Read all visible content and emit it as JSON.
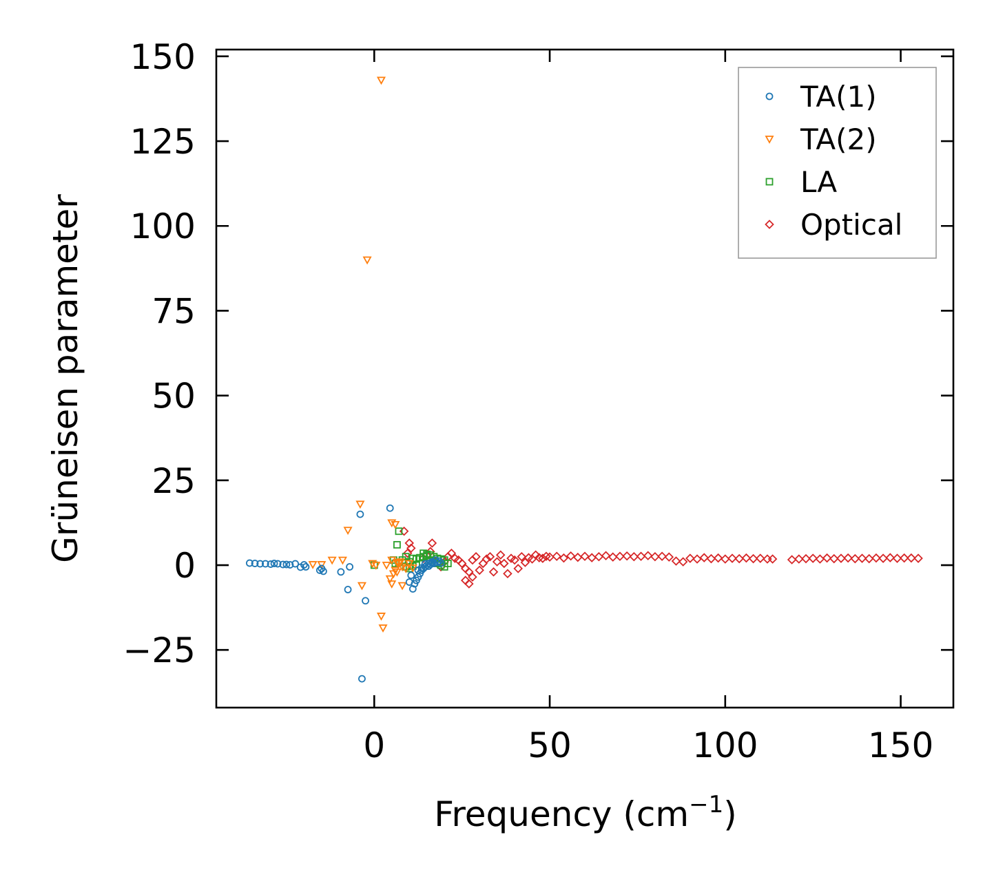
{
  "chart_data": {
    "type": "scatter",
    "xlabel": "Frequency (cm",
    "xlabel_sup": "−1",
    "xlabel_close": ")",
    "ylabel": "Grüneisen parameter",
    "xlim": [
      -45,
      165
    ],
    "ylim": [
      -42,
      152
    ],
    "xticks": [
      0,
      50,
      100,
      150
    ],
    "xtick_labels": [
      "0",
      "50",
      "100",
      "150"
    ],
    "yticks": [
      -25,
      0,
      25,
      50,
      75,
      100,
      125,
      150
    ],
    "ytick_labels": [
      "−25",
      "0",
      "25",
      "50",
      "75",
      "100",
      "125",
      "150"
    ],
    "legend_position": "top-right",
    "series": [
      {
        "name": "TA(1)",
        "marker": "circle",
        "color": "#1f77b4",
        "points": [
          [
            -35.5,
            0.6
          ],
          [
            -34,
            0.5
          ],
          [
            -32.5,
            0.4
          ],
          [
            -31,
            0.4
          ],
          [
            -29.5,
            0.3
          ],
          [
            -28.5,
            0.5
          ],
          [
            -27.5,
            0.4
          ],
          [
            -26,
            0.2
          ],
          [
            -25,
            0.2
          ],
          [
            -24,
            0.1
          ],
          [
            -22.5,
            0.4
          ],
          [
            -21,
            -0.6
          ],
          [
            -20,
            0.1
          ],
          [
            -19.5,
            -0.5
          ],
          [
            -15.5,
            -1.5
          ],
          [
            -15,
            -1.0
          ],
          [
            -14.5,
            -1.8
          ],
          [
            -9.5,
            -2.0
          ],
          [
            -7,
            -0.5
          ],
          [
            -7.5,
            -7.2
          ],
          [
            -4,
            15.0
          ],
          [
            -3.5,
            -33.5
          ],
          [
            -2.5,
            -10.5
          ],
          [
            4.5,
            16.8
          ],
          [
            10,
            -5.0
          ],
          [
            11,
            -7.0
          ],
          [
            11.5,
            -5.5
          ],
          [
            12,
            -4.5
          ],
          [
            10.5,
            -3.0
          ],
          [
            12.5,
            -3.5
          ],
          [
            13,
            -2.5
          ],
          [
            13.5,
            -1.5
          ],
          [
            14,
            -1.0
          ],
          [
            14.5,
            -0.5
          ],
          [
            15,
            0.0
          ],
          [
            15.5,
            0.5
          ],
          [
            16,
            0.2
          ],
          [
            16.5,
            1.0
          ],
          [
            17,
            0.5
          ],
          [
            17.5,
            1.5
          ],
          [
            18,
            0.8
          ],
          [
            18.5,
            1.2
          ],
          [
            19,
            0.6
          ],
          [
            12.5,
            -1.5
          ],
          [
            13.5,
            -0.8
          ],
          [
            14.5,
            0.4
          ],
          [
            15.5,
            -0.3
          ],
          [
            16.5,
            0.6
          ]
        ]
      },
      {
        "name": "TA(2)",
        "marker": "triangle-down",
        "color": "#ff7f0e",
        "points": [
          [
            2,
            143
          ],
          [
            -2,
            90
          ],
          [
            -4,
            18
          ],
          [
            -7.5,
            10.3
          ],
          [
            -9,
            1.5
          ],
          [
            -12,
            1.5
          ],
          [
            -15,
            0.2
          ],
          [
            -17.5,
            0.2
          ],
          [
            -3.5,
            -6.0
          ],
          [
            2,
            -15.0
          ],
          [
            2.5,
            -18.5
          ],
          [
            5,
            -5.5
          ],
          [
            4.5,
            -4.0
          ],
          [
            5.5,
            -2.5
          ],
          [
            6,
            -1.5
          ],
          [
            6.5,
            -2.0
          ],
          [
            5,
            1.5
          ],
          [
            7,
            0.5
          ],
          [
            8,
            -0.5
          ],
          [
            5,
            12.5
          ],
          [
            6,
            12.0
          ],
          [
            8,
            -6.0
          ],
          [
            -0.5,
            0.5
          ],
          [
            0.5,
            0.0
          ],
          [
            3.5,
            0.0
          ],
          [
            6.5,
            0.8
          ],
          [
            7.5,
            1.0
          ],
          [
            9,
            -1.0
          ],
          [
            10,
            0.5
          ],
          [
            11,
            -0.8
          ]
        ]
      },
      {
        "name": "LA",
        "marker": "square",
        "color": "#2ca02c",
        "points": [
          [
            7,
            10
          ],
          [
            6.5,
            6
          ],
          [
            0,
            0
          ],
          [
            5.5,
            1.5
          ],
          [
            6,
            0.5
          ],
          [
            7,
            0.8
          ],
          [
            8,
            1.5
          ],
          [
            9,
            2.5
          ],
          [
            10,
            1.0
          ],
          [
            11,
            2.0
          ],
          [
            12,
            1.8
          ],
          [
            13,
            2.2
          ],
          [
            14,
            2.5
          ],
          [
            15,
            2.8
          ],
          [
            16,
            3.0
          ],
          [
            17,
            2.5
          ],
          [
            18,
            2.0
          ],
          [
            19,
            1.8
          ],
          [
            20,
            1.5
          ],
          [
            16,
            1.5
          ],
          [
            17,
            1.0
          ],
          [
            18,
            0.5
          ],
          [
            19,
            0.0
          ],
          [
            20,
            -0.5
          ],
          [
            21,
            0.5
          ],
          [
            9,
            -0.5
          ],
          [
            10,
            -1.0
          ],
          [
            11,
            -0.3
          ],
          [
            12,
            0.2
          ],
          [
            14,
            3.5
          ],
          [
            15,
            3.2
          ]
        ]
      },
      {
        "name": "Optical",
        "marker": "diamond",
        "color": "#d62728",
        "points": [
          [
            8.5,
            10
          ],
          [
            10,
            6.5
          ],
          [
            10.5,
            5
          ],
          [
            9.5,
            3.5
          ],
          [
            16.5,
            6.5
          ],
          [
            26,
            -4.5
          ],
          [
            27,
            -5.5
          ],
          [
            28,
            -3.5
          ],
          [
            14,
            2
          ],
          [
            15,
            3
          ],
          [
            16,
            4
          ],
          [
            17,
            1.5
          ],
          [
            18,
            0.5
          ],
          [
            19,
            -0.5
          ],
          [
            20,
            1.0
          ],
          [
            21,
            2.5
          ],
          [
            22,
            3.5
          ],
          [
            23,
            2.0
          ],
          [
            24,
            1.5
          ],
          [
            25,
            0.5
          ],
          [
            26,
            -1.0
          ],
          [
            27,
            -2.0
          ],
          [
            28,
            1.5
          ],
          [
            29,
            2.5
          ],
          [
            30,
            -1.5
          ],
          [
            31,
            0.5
          ],
          [
            32,
            1.8
          ],
          [
            33,
            2.5
          ],
          [
            34,
            -2.0
          ],
          [
            35,
            1.0
          ],
          [
            36,
            3.0
          ],
          [
            37,
            0.5
          ],
          [
            38,
            -2.5
          ],
          [
            39,
            2.0
          ],
          [
            40,
            1.5
          ],
          [
            41,
            -1.0
          ],
          [
            42,
            2.5
          ],
          [
            43,
            0.8
          ],
          [
            44,
            2.2
          ],
          [
            45,
            1.8
          ],
          [
            46,
            3.0
          ],
          [
            47,
            2.2
          ],
          [
            48,
            2.0
          ],
          [
            49,
            2.6
          ],
          [
            50,
            2.4
          ],
          [
            52,
            2.6
          ],
          [
            54,
            2.1
          ],
          [
            56,
            2.7
          ],
          [
            58,
            2.3
          ],
          [
            60,
            2.6
          ],
          [
            62,
            2.2
          ],
          [
            64,
            2.5
          ],
          [
            66,
            2.8
          ],
          [
            68,
            2.4
          ],
          [
            70,
            2.6
          ],
          [
            72,
            2.7
          ],
          [
            74,
            2.5
          ],
          [
            76,
            2.6
          ],
          [
            78,
            2.8
          ],
          [
            80,
            2.5
          ],
          [
            82,
            2.6
          ],
          [
            84,
            2.4
          ],
          [
            86,
            1.2
          ],
          [
            88,
            1.0
          ],
          [
            90,
            2.0
          ],
          [
            92,
            1.8
          ],
          [
            94,
            2.2
          ],
          [
            96,
            1.9
          ],
          [
            98,
            2.1
          ],
          [
            100,
            1.8
          ],
          [
            102,
            2.0
          ],
          [
            104,
            1.9
          ],
          [
            106,
            2.1
          ],
          [
            108,
            1.9
          ],
          [
            110,
            2.0
          ],
          [
            112,
            1.8
          ],
          [
            113.5,
            1.8
          ],
          [
            119,
            1.6
          ],
          [
            121,
            1.8
          ],
          [
            123,
            1.9
          ],
          [
            125,
            2.0
          ],
          [
            127,
            1.8
          ],
          [
            129,
            2.1
          ],
          [
            131,
            1.9
          ],
          [
            133,
            2.0
          ],
          [
            135,
            2.1
          ],
          [
            137,
            1.9
          ],
          [
            139,
            2.0
          ],
          [
            141,
            1.9
          ],
          [
            143,
            2.1
          ],
          [
            145,
            2.0
          ],
          [
            147,
            2.2
          ],
          [
            149,
            2.0
          ],
          [
            151,
            2.1
          ],
          [
            153,
            2.1
          ],
          [
            155,
            2.0
          ]
        ]
      }
    ]
  }
}
